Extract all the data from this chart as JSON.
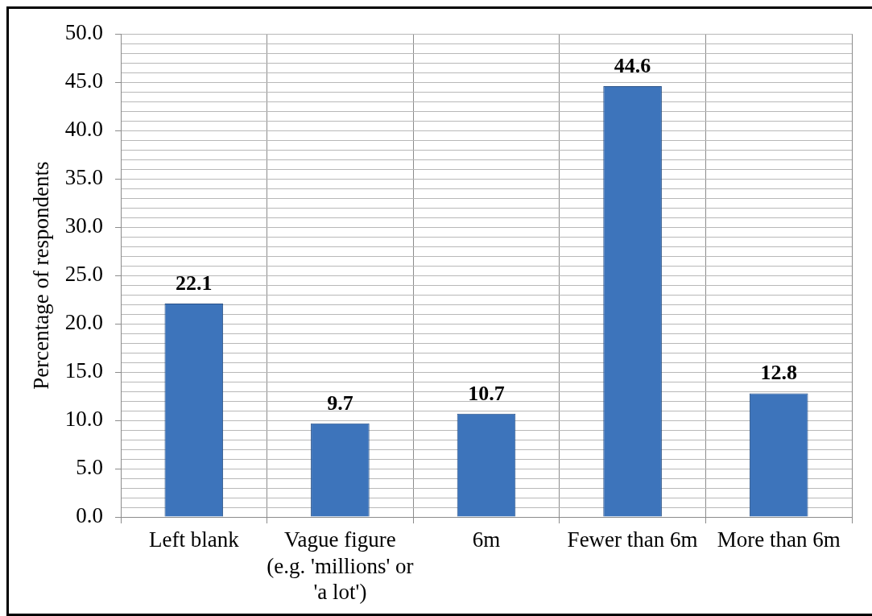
{
  "chart_data": {
    "type": "bar",
    "ylabel": "Percentage of respondents",
    "categories": [
      "Left blank",
      "Vague figure (e.g. 'millions' or 'a lot')",
      "6m",
      "Fewer than 6m",
      "More than 6m"
    ],
    "values": [
      22.1,
      9.7,
      10.7,
      44.6,
      12.8
    ],
    "color": "#3d74bb",
    "ylim": [
      0,
      50
    ],
    "yticks": [
      {
        "value": 0,
        "label": "0.0"
      },
      {
        "value": 1,
        "label": null
      },
      {
        "value": 2,
        "label": null
      },
      {
        "value": 3,
        "label": null
      },
      {
        "value": 4,
        "label": null
      },
      {
        "value": 5,
        "label": "5.0"
      },
      {
        "value": 6,
        "label": null
      },
      {
        "value": 7,
        "label": null
      },
      {
        "value": 8,
        "label": null
      },
      {
        "value": 9,
        "label": null
      },
      {
        "value": 10,
        "label": "10.0"
      },
      {
        "value": 11,
        "label": null
      },
      {
        "value": 12,
        "label": null
      },
      {
        "value": 13,
        "label": null
      },
      {
        "value": 14,
        "label": null
      },
      {
        "value": 15,
        "label": "15.0"
      },
      {
        "value": 16,
        "label": null
      },
      {
        "value": 17,
        "label": null
      },
      {
        "value": 18,
        "label": null
      },
      {
        "value": 19,
        "label": null
      },
      {
        "value": 20,
        "label": "20.0"
      },
      {
        "value": 21,
        "label": null
      },
      {
        "value": 22,
        "label": null
      },
      {
        "value": 23,
        "label": null
      },
      {
        "value": 24,
        "label": null
      },
      {
        "value": 25,
        "label": "25.0"
      },
      {
        "value": 26,
        "label": null
      },
      {
        "value": 27,
        "label": null
      },
      {
        "value": 28,
        "label": null
      },
      {
        "value": 29,
        "label": null
      },
      {
        "value": 30,
        "label": "30.0"
      },
      {
        "value": 31,
        "label": null
      },
      {
        "value": 32,
        "label": null
      },
      {
        "value": 33,
        "label": null
      },
      {
        "value": 34,
        "label": null
      },
      {
        "value": 35,
        "label": "35.0"
      },
      {
        "value": 36,
        "label": null
      },
      {
        "value": 37,
        "label": null
      },
      {
        "value": 38,
        "label": null
      },
      {
        "value": 39,
        "label": null
      },
      {
        "value": 40,
        "label": "40.0"
      },
      {
        "value": 41,
        "label": null
      },
      {
        "value": 42,
        "label": null
      },
      {
        "value": 43,
        "label": null
      },
      {
        "value": 44,
        "label": null
      },
      {
        "value": 45,
        "label": "45.0"
      },
      {
        "value": 46,
        "label": null
      },
      {
        "value": 47,
        "label": null
      },
      {
        "value": 48,
        "label": null
      },
      {
        "value": 49,
        "label": null
      },
      {
        "value": 50,
        "label": "50.0"
      }
    ],
    "grid": true,
    "data_labels": true
  }
}
